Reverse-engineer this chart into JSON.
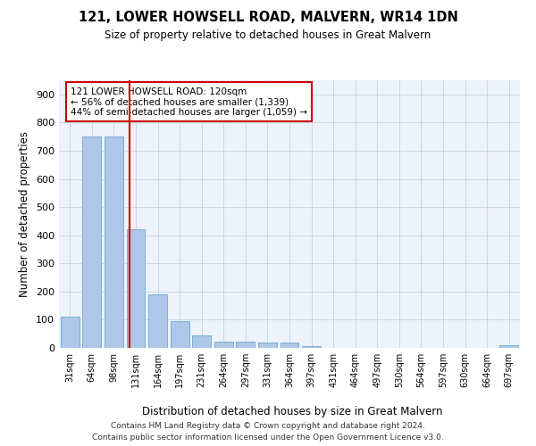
{
  "title": "121, LOWER HOWSELL ROAD, MALVERN, WR14 1DN",
  "subtitle": "Size of property relative to detached houses in Great Malvern",
  "xlabel": "Distribution of detached houses by size in Great Malvern",
  "ylabel": "Number of detached properties",
  "bar_labels": [
    "31sqm",
    "64sqm",
    "98sqm",
    "131sqm",
    "164sqm",
    "197sqm",
    "231sqm",
    "264sqm",
    "297sqm",
    "331sqm",
    "364sqm",
    "397sqm",
    "431sqm",
    "464sqm",
    "497sqm",
    "530sqm",
    "564sqm",
    "597sqm",
    "630sqm",
    "664sqm",
    "697sqm"
  ],
  "bar_values": [
    110,
    750,
    750,
    420,
    190,
    95,
    43,
    22,
    22,
    18,
    18,
    7,
    0,
    0,
    0,
    0,
    0,
    0,
    0,
    0,
    8
  ],
  "bar_color": "#aec6e8",
  "bar_edge_color": "#6aabd2",
  "vline_x": 2.72,
  "vline_color": "#cc0000",
  "ylim": [
    0,
    950
  ],
  "yticks": [
    0,
    100,
    200,
    300,
    400,
    500,
    600,
    700,
    800,
    900
  ],
  "annotation_text": "121 LOWER HOWSELL ROAD: 120sqm\n← 56% of detached houses are smaller (1,339)\n44% of semi-detached houses are larger (1,059) →",
  "annotation_box_color": "#ffffff",
  "annotation_box_edge": "#cc0000",
  "footer_line1": "Contains HM Land Registry data © Crown copyright and database right 2024.",
  "footer_line2": "Contains public sector information licensed under the Open Government Licence v3.0.",
  "plot_bg_color": "#eef2fb"
}
